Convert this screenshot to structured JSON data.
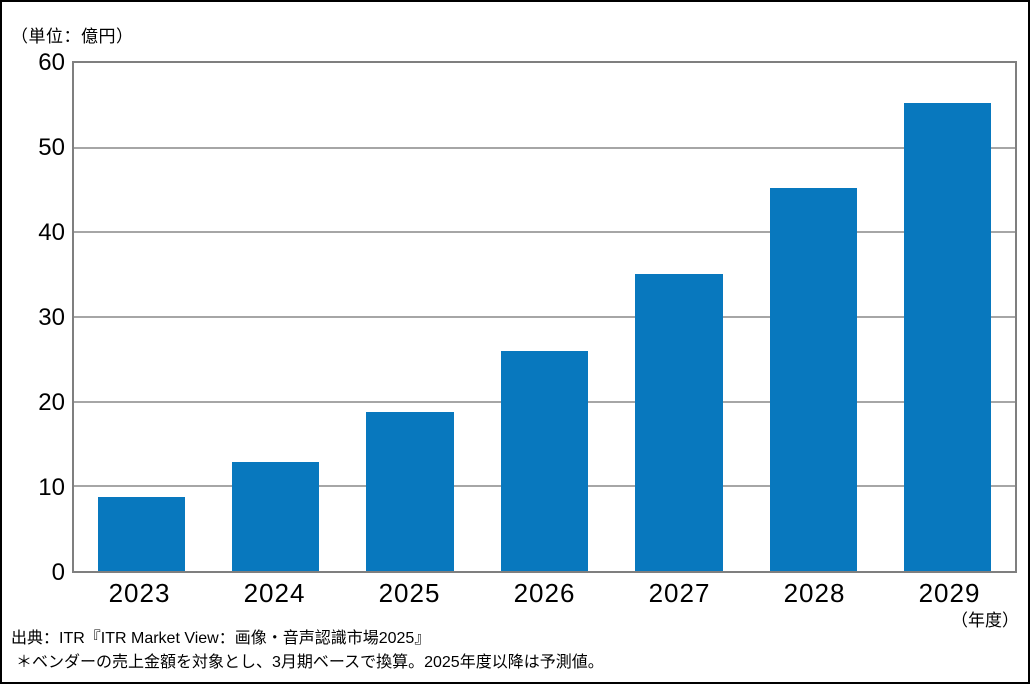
{
  "chart": {
    "unit_label": "（単位：億円）",
    "x_axis_suffix": "（年度）",
    "source_line1": "出典：ITR『ITR Market View：画像・音声認識市場2025』",
    "source_line2": "＊ベンダーの売上金額を対象とし、3月期ベースで換算。2025年度以降は予測値。",
    "colors": {
      "bar": "#0878be",
      "gridline": "#a6a6a6",
      "axis_box": "#7f7f7f",
      "border": "#000000"
    }
  },
  "chart_data": {
    "type": "bar",
    "categories": [
      "2023",
      "2024",
      "2025",
      "2026",
      "2027",
      "2028",
      "2029"
    ],
    "values": [
      8.7,
      12.9,
      18.8,
      26.0,
      35.1,
      45.2,
      55.3
    ],
    "title": "",
    "xlabel": "（年度）",
    "ylabel": "（単位：億円）",
    "ylim": [
      0,
      60
    ],
    "ytick_step": 10,
    "grid": true,
    "legend": false,
    "bar_color": "#0878be"
  }
}
